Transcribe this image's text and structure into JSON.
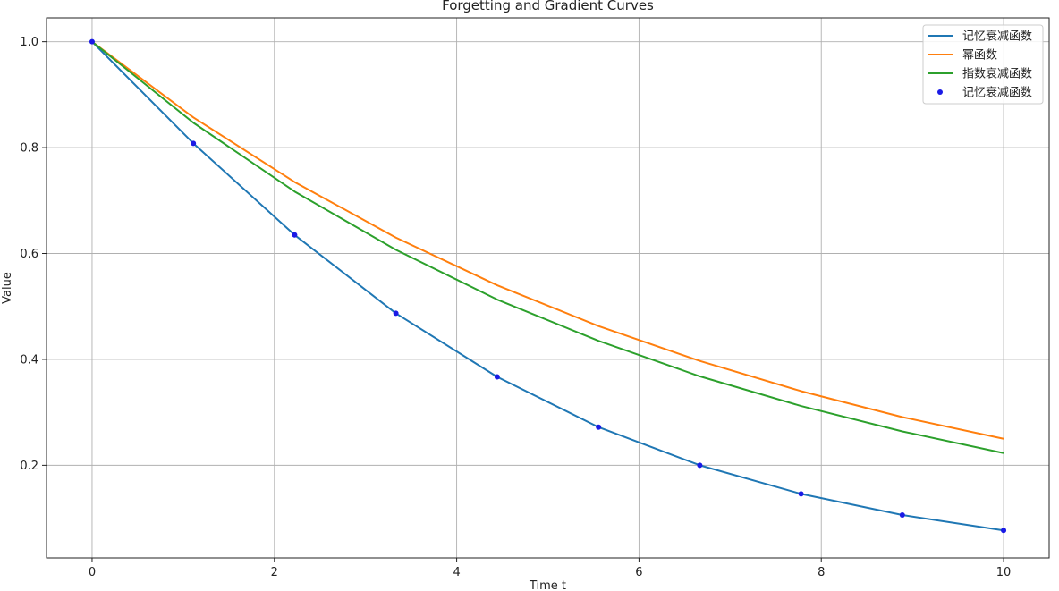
{
  "chart_data": {
    "type": "line",
    "title": "Forgetting and Gradient Curves",
    "xlabel": "Time t",
    "ylabel": "Value",
    "xlim": [
      -0.5,
      10.5
    ],
    "ylim": [
      0.025,
      1.045
    ],
    "xticks": [
      0,
      2,
      4,
      6,
      8,
      10
    ],
    "yticks": [
      0.2,
      0.4,
      0.6,
      0.8,
      1.0
    ],
    "grid": true,
    "legend_position": "top-right",
    "x": [
      0,
      1.111,
      2.222,
      3.333,
      4.444,
      5.556,
      6.667,
      7.778,
      8.889,
      10
    ],
    "series": [
      {
        "name": "记忆衰减函数",
        "kind": "line",
        "color": "#1f77b4",
        "values": [
          1.0,
          0.808,
          0.635,
          0.487,
          0.367,
          0.272,
          0.2,
          0.146,
          0.106,
          0.077
        ]
      },
      {
        "name": "幂函数",
        "kind": "line",
        "color": "#ff7f0e",
        "values": [
          1.0,
          0.857,
          0.735,
          0.63,
          0.54,
          0.463,
          0.397,
          0.34,
          0.291,
          0.25
        ]
      },
      {
        "name": "指数衰减函数",
        "kind": "line",
        "color": "#2ca02c",
        "values": [
          1.0,
          0.847,
          0.717,
          0.607,
          0.513,
          0.435,
          0.368,
          0.312,
          0.264,
          0.223
        ]
      },
      {
        "name": "记忆衰减函数",
        "kind": "scatter",
        "color": "#1a1ae6",
        "values": [
          1.0,
          0.808,
          0.635,
          0.487,
          0.367,
          0.272,
          0.2,
          0.146,
          0.106,
          0.077
        ]
      }
    ]
  }
}
